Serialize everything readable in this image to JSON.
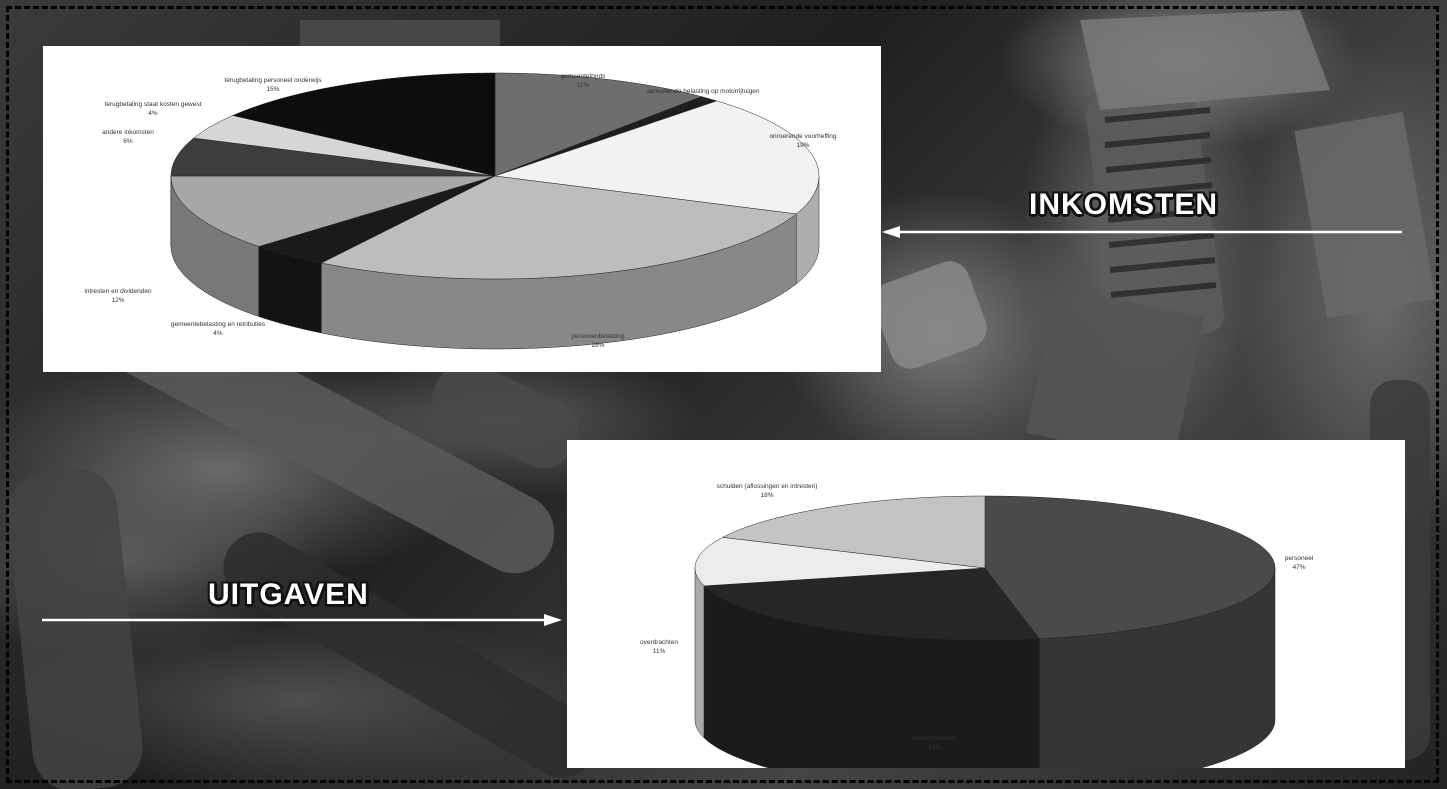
{
  "colors": {
    "frame": "#000000",
    "panel_background": "#ffffff",
    "section_title_fill": "#ffffff",
    "arrow": "#ffffff"
  },
  "sections": {
    "income_title": "INKOMSTEN",
    "expense_title": "UITGAVEN"
  },
  "chart_data": [
    {
      "type": "pie",
      "style": "3d-tilted",
      "title": "",
      "slices": [
        {
          "label": "gemeentefonds",
          "pct_label": "11%",
          "value": 11,
          "color": "#6e6e6e"
        },
        {
          "label": "aanvullende belasting op motorrijtuigen",
          "pct_label": "1%",
          "value": 1,
          "color": "#1e1e1e"
        },
        {
          "label": "onroerende voorheffing",
          "pct_label": "19%",
          "value": 19,
          "color": "#f2f2f2"
        },
        {
          "label": "personenbelasting",
          "pct_label": "28%",
          "value": 28,
          "color": "#bdbdbd"
        },
        {
          "label": "gemeentebelasting en retributies",
          "pct_label": "4%",
          "value": 4,
          "color": "#1a1a1a"
        },
        {
          "label": "intresten en dividenden",
          "pct_label": "12%",
          "value": 12,
          "color": "#a7a7a7"
        },
        {
          "label": "andere inkomsten",
          "pct_label": "6%",
          "value": 6,
          "color": "#3d3d3d"
        },
        {
          "label": "terugbetaling staat kosten gewest",
          "pct_label": "4%",
          "value": 4,
          "color": "#d6d6d6"
        },
        {
          "label": "terugbetaling personeel onderwijs",
          "pct_label": "15%",
          "value": 15,
          "color": "#0d0d0d"
        }
      ]
    },
    {
      "type": "pie",
      "style": "3d-tilted",
      "title": "",
      "slices": [
        {
          "label": "personeel",
          "pct_label": "47%",
          "value": 47,
          "color": "#4a4a4a"
        },
        {
          "label": "werkingskosten",
          "pct_label": "24%",
          "value": 24,
          "color": "#262626"
        },
        {
          "label": "overdrachten",
          "pct_label": "11%",
          "value": 11,
          "color": "#ececec"
        },
        {
          "label": "schulden (aflossingen en intresten)",
          "pct_label": "18%",
          "value": 18,
          "color": "#c4c4c4"
        }
      ]
    }
  ]
}
